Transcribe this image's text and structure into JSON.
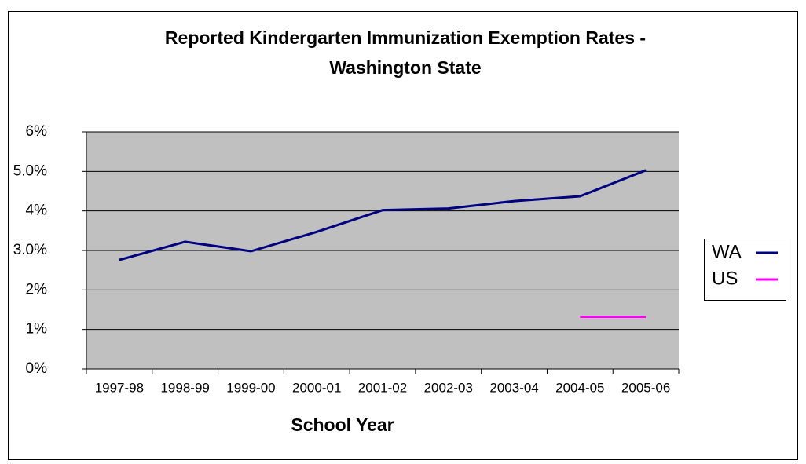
{
  "chart_data": {
    "type": "line",
    "title": [
      "Reported Kindergarten Immunization Exemption Rates -",
      "Washington State"
    ],
    "x_label": "School Year",
    "categories": [
      "1997-98",
      "1998-99",
      "1999-00",
      "2000-01",
      "2001-02",
      "2002-03",
      "2003-04",
      "2004-05",
      "2005-06"
    ],
    "series": [
      {
        "name": "WA",
        "color": "#000080",
        "values": [
          2.76,
          3.22,
          2.98,
          3.47,
          4.02,
          4.06,
          4.25,
          4.37,
          5.03
        ]
      },
      {
        "name": "US",
        "color": "#ff00ff",
        "values": [
          null,
          null,
          null,
          null,
          null,
          null,
          null,
          1.32,
          1.32
        ]
      }
    ],
    "ylim": [
      0,
      6
    ],
    "yticks": [
      {
        "value": 0,
        "label": "0%"
      },
      {
        "value": 1,
        "label": "1%"
      },
      {
        "value": 2,
        "label": "2%"
      },
      {
        "value": 3,
        "label": "3.0%"
      },
      {
        "value": 4,
        "label": "4%"
      },
      {
        "value": 5,
        "label": "5.0%"
      },
      {
        "value": 6,
        "label": "6%"
      }
    ],
    "grid": true,
    "legend": "right",
    "plot_background": "#c0c0c0"
  }
}
